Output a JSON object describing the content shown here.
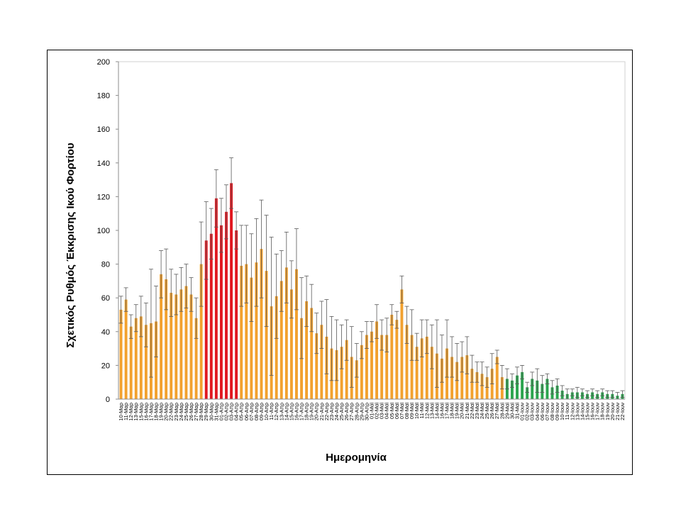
{
  "chart_data": {
    "type": "bar",
    "title": "",
    "xlabel": "Ημερομηνία",
    "ylabel": "Σχετικός Ρυθμός Έκκρισης Ικού Φορτίου",
    "ylim": [
      0,
      200
    ],
    "yticks": [
      0,
      20,
      40,
      60,
      80,
      100,
      120,
      140,
      160,
      180,
      200
    ],
    "grid": false,
    "legend": "none",
    "colors": {
      "orange": "#F2A12E",
      "red": "#E0171F",
      "green": "#2BA44E",
      "error": "#595959"
    },
    "categories": [
      "10-Μαρ",
      "11-Μαρ",
      "12-Μαρ",
      "13-Μαρ",
      "15-Μαρ",
      "16-Μαρ",
      "17-Μαρ",
      "18-Μαρ",
      "19-Μαρ",
      "20-Μαρ",
      "22-Μαρ",
      "23-Μαρ",
      "24-Μαρ",
      "25-Μαρ",
      "26-Μαρ",
      "27-Μαρ",
      "28-Μαρ",
      "29-Μαρ",
      "30-Μαρ",
      "31-Μαρ",
      "01-Απρ",
      "02-Απρ",
      "03-Απρ",
      "04-Απρ",
      "05-Απρ",
      "06-Απρ",
      "07-Απρ",
      "08-Απρ",
      "09-Απρ",
      "10-Απρ",
      "11-Απρ",
      "12-Απρ",
      "13-Απρ",
      "14-Απρ",
      "15-Απρ",
      "16-Απρ",
      "17-Απρ",
      "18-Απρ",
      "19-Απρ",
      "20-Απρ",
      "21-Απρ",
      "22-Απρ",
      "23-Απρ",
      "24-Απρ",
      "25-Απρ",
      "26-Απρ",
      "27-Απρ",
      "28-Απρ",
      "29-Απρ",
      "30-Απρ",
      "01-Μαϊ",
      "02-Μαϊ",
      "03-Μαϊ",
      "04-Μαϊ",
      "05-Μαϊ",
      "06-Μαϊ",
      "07-Μαϊ",
      "08-Μαϊ",
      "09-Μαϊ",
      "10-Μαϊ",
      "11-Μαϊ",
      "12-Μαϊ",
      "13-Μαϊ",
      "14-Μαϊ",
      "16-Μαϊ",
      "17-Μαϊ",
      "18-Μαϊ",
      "19-Μαϊ",
      "20-Μαϊ",
      "21-Μαϊ",
      "22-Μαϊ",
      "23-Μαϊ",
      "24-Μαϊ",
      "25-Μαϊ",
      "26-Μαϊ",
      "27-Μαϊ",
      "28-Μαϊ",
      "29-Μαϊ",
      "30-Μαϊ",
      "31-Μαϊ",
      "01-Ιουν",
      "02-Ιουν",
      "03-Ιουν",
      "04-Ιουν",
      "06-Ιουν",
      "07-Ιουν",
      "08-Ιουν",
      "09-Ιουν",
      "10-Ιουν",
      "11-Ιουν",
      "12-Ιουν",
      "13-Ιουν",
      "14-Ιουν",
      "15-Ιουν",
      "16-Ιουν",
      "17-Ιουν",
      "18-Ιουν",
      "19-Ιουν",
      "20-Ιουν",
      "21-Ιουν",
      "22-Ιουν"
    ],
    "values": [
      53,
      59,
      43,
      48,
      49,
      44,
      45,
      46,
      74,
      71,
      63,
      62,
      65,
      67,
      62,
      48,
      80,
      94,
      98,
      119,
      103,
      111,
      128,
      100,
      79,
      80,
      72,
      81,
      89,
      76,
      55,
      61,
      70,
      78,
      65,
      77,
      48,
      58,
      54,
      39,
      44,
      37,
      30,
      29,
      31,
      35,
      25,
      23,
      32,
      38,
      40,
      46,
      38,
      38,
      50,
      47,
      65,
      44,
      38,
      31,
      36,
      37,
      31,
      27,
      24,
      30,
      25,
      22,
      25,
      26,
      18,
      16,
      15,
      13,
      18,
      25,
      13,
      12,
      11,
      14,
      16,
      7,
      12,
      11,
      9,
      12,
      7,
      8,
      5,
      3,
      4,
      4,
      4,
      3,
      4,
      3,
      4,
      3,
      3,
      2,
      3
    ],
    "errors": [
      8,
      7,
      7,
      8,
      12,
      13,
      32,
      21,
      14,
      18,
      14,
      12,
      13,
      13,
      10,
      12,
      25,
      23,
      15,
      17,
      16,
      16,
      15,
      11,
      24,
      23,
      26,
      26,
      29,
      33,
      41,
      25,
      18,
      21,
      17,
      24,
      24,
      15,
      14,
      12,
      14,
      22,
      19,
      18,
      13,
      12,
      18,
      10,
      8,
      8,
      6,
      10,
      9,
      10,
      6,
      5,
      8,
      11,
      15,
      8,
      11,
      10,
      13,
      20,
      14,
      17,
      12,
      11,
      9,
      11,
      8,
      6,
      7,
      6,
      9,
      4,
      7,
      6,
      4,
      5,
      4,
      3,
      4,
      7,
      5,
      3,
      4,
      4,
      3,
      3,
      2,
      3,
      2,
      2,
      2,
      2,
      2,
      2,
      2,
      2,
      2
    ],
    "bar_colors": [
      "orange",
      "orange",
      "orange",
      "orange",
      "orange",
      "orange",
      "orange",
      "orange",
      "orange",
      "orange",
      "orange",
      "orange",
      "orange",
      "orange",
      "orange",
      "orange",
      "orange",
      "red",
      "red",
      "red",
      "red",
      "red",
      "red",
      "red",
      "orange",
      "orange",
      "orange",
      "orange",
      "orange",
      "orange",
      "orange",
      "orange",
      "orange",
      "orange",
      "orange",
      "orange",
      "orange",
      "orange",
      "orange",
      "orange",
      "orange",
      "orange",
      "orange",
      "orange",
      "orange",
      "orange",
      "orange",
      "orange",
      "orange",
      "orange",
      "orange",
      "orange",
      "orange",
      "orange",
      "orange",
      "orange",
      "orange",
      "orange",
      "orange",
      "orange",
      "orange",
      "orange",
      "orange",
      "orange",
      "orange",
      "orange",
      "orange",
      "orange",
      "orange",
      "orange",
      "orange",
      "orange",
      "orange",
      "orange",
      "orange",
      "orange",
      "orange",
      "green",
      "green",
      "green",
      "green",
      "green",
      "green",
      "green",
      "green",
      "green",
      "green",
      "green",
      "green",
      "green",
      "green",
      "green",
      "green",
      "green",
      "green",
      "green",
      "green",
      "green",
      "green",
      "green",
      "green"
    ]
  }
}
